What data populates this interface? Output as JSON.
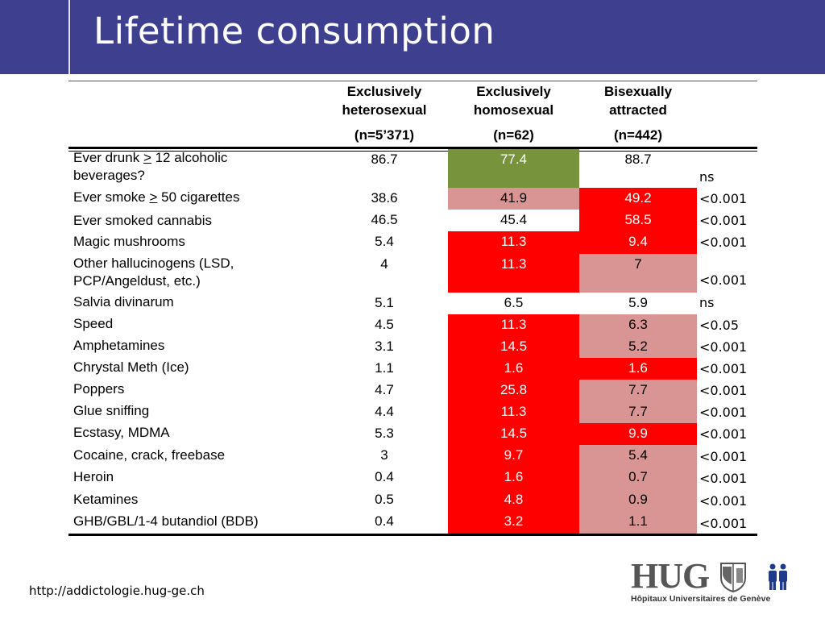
{
  "title": "Lifetime consumption",
  "columns": [
    {
      "line1": "Exclusively",
      "line2": "heterosexual",
      "n": "(n=5’371)"
    },
    {
      "line1": "Exclusively",
      "line2": "homosexual",
      "n": "(n=62)"
    },
    {
      "line1": "Bisexually",
      "line2": "attracted",
      "n": "(n=442)"
    }
  ],
  "rows": [
    {
      "label": "Ever drunk > 12 alcoholic beverages?",
      "v1": "86.7",
      "v2": "77.4",
      "v3": "88.7",
      "p": "ns"
    },
    {
      "label": "Ever smoke > 50 cigarettes",
      "v1": "38.6",
      "v2": "41.9",
      "v3": "49.2",
      "p": "<0.001"
    },
    {
      "label": "Ever smoked cannabis",
      "v1": "46.5",
      "v2": "45.4",
      "v3": "58.5",
      "p": "<0.001"
    },
    {
      "label": "Magic mushrooms",
      "v1": "5.4",
      "v2": "11.3",
      "v3": "9.4",
      "p": "<0.001"
    },
    {
      "label": "Other hallucinogens (LSD, PCP/Angeldust, etc.)",
      "v1": "4",
      "v2": "11.3",
      "v3": "7",
      "p": "<0.001"
    },
    {
      "label": "Salvia divinarum",
      "v1": "5.1",
      "v2": "6.5",
      "v3": "5.9",
      "p": "ns"
    },
    {
      "label": "Speed",
      "v1": "4.5",
      "v2": "11.3",
      "v3": "6.3",
      "p": "<0.05"
    },
    {
      "label": "Amphetamines",
      "v1": "3.1",
      "v2": "14.5",
      "v3": "5.2",
      "p": "<0.001"
    },
    {
      "label": "Chrystal Meth (Ice)",
      "v1": "1.1",
      "v2": "1.6",
      "v3": "1.6",
      "p": "<0.001"
    },
    {
      "label": "Poppers",
      "v1": "4.7",
      "v2": "25.8",
      "v3": "7.7",
      "p": "<0.001"
    },
    {
      "label": "Glue sniffing",
      "v1": "4.4",
      "v2": "11.3",
      "v3": "7.7",
      "p": "<0.001"
    },
    {
      "label": "Ecstasy, MDMA",
      "v1": "5.3",
      "v2": "14.5",
      "v3": "9.9",
      "p": "<0.001"
    },
    {
      "label": "Cocaine, crack, freebase",
      "v1": "3",
      "v2": "9.7",
      "v3": "5.4",
      "p": "<0.001"
    },
    {
      "label": "Heroin",
      "v1": "0.4",
      "v2": "1.6",
      "v3": "0.7",
      "p": "<0.001"
    },
    {
      "label": "Ketamines",
      "v1": "0.5",
      "v2": "4.8",
      "v3": "0.9",
      "p": "<0.001"
    },
    {
      "label": "GHB/GBL/1-4 butandiol (BDB)",
      "v1": "0.4",
      "v2": "3.2",
      "v3": "1.1",
      "p": "<0.001"
    }
  ],
  "label_parts": {
    "r0a": "Ever drunk ",
    "r0gt": ">",
    "r0b": " 12 alcoholic",
    "r0c": "beverages?",
    "r1a": "Ever smoke ",
    "r1gt": ">",
    "r1b": " 50 cigarettes",
    "r4a": "Other hallucinogens (LSD,",
    "r4b": "PCP/Angeldust, etc.)"
  },
  "footer": {
    "url": "http://addictologie.hug-ge.ch"
  },
  "logo": {
    "text": "HUG",
    "subtitle": "Hôpitaux Universitaires de Genève"
  },
  "colors": {
    "header": "#3f3f8f",
    "red": "#ff0000",
    "pink": "#d99594",
    "green": "#77933c"
  }
}
